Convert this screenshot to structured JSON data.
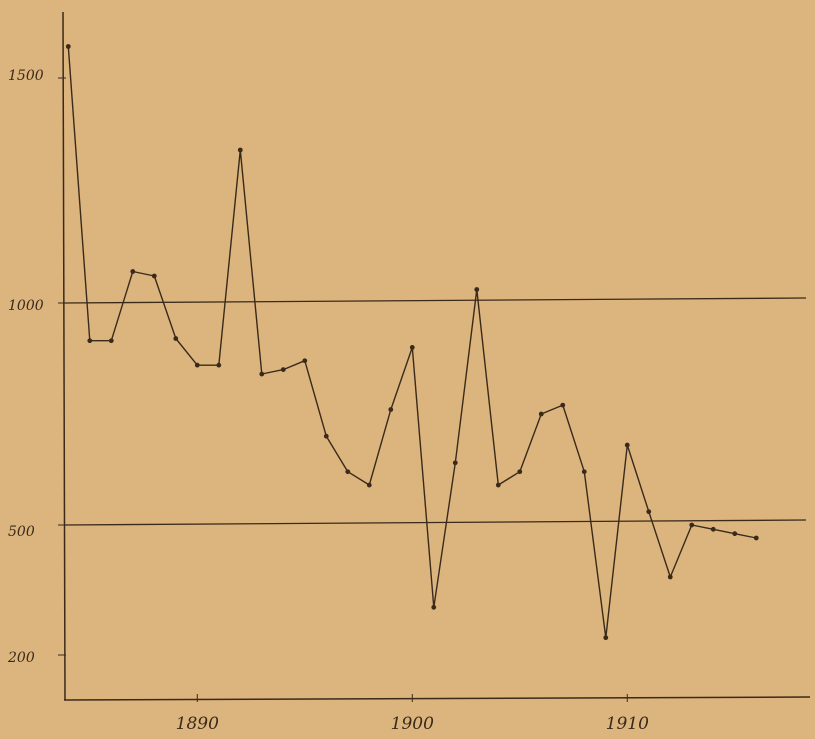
{
  "chart_data": {
    "type": "line",
    "title": "",
    "xlabel": "",
    "ylabel": "",
    "x_tick_labels": [
      "1890",
      "1900",
      "1910"
    ],
    "y_tick_labels": [
      "1500",
      "1000",
      "500",
      "200"
    ],
    "xlim": [
      1883.8,
      1918.5
    ],
    "x_ticks": [
      1890,
      1900,
      1910
    ],
    "y_ticks": [
      1500,
      1000,
      500,
      200
    ],
    "reference_lines": [
      1000,
      500
    ],
    "grid": false,
    "legend": "none",
    "series": [
      {
        "x": [
          1884,
          1885,
          1886,
          1887,
          1888,
          1889,
          1890,
          1891,
          1892,
          1893,
          1894,
          1895,
          1896,
          1897,
          1898,
          1899,
          1900,
          1901,
          1902,
          1903,
          1904,
          1905,
          1906,
          1907,
          1908,
          1909,
          1910,
          1911,
          1912,
          1913,
          1914,
          1915,
          1916
        ],
        "y": [
          1570,
          915,
          915,
          1070,
          1060,
          920,
          860,
          860,
          1340,
          840,
          850,
          870,
          700,
          620,
          590,
          760,
          900,
          310,
          640,
          1030,
          590,
          620,
          750,
          770,
          620,
          240,
          680,
          530,
          380,
          500,
          490,
          480,
          470
        ]
      }
    ],
    "colors": {
      "background": "#dcb47e",
      "ink": "#3a2a1a"
    }
  }
}
